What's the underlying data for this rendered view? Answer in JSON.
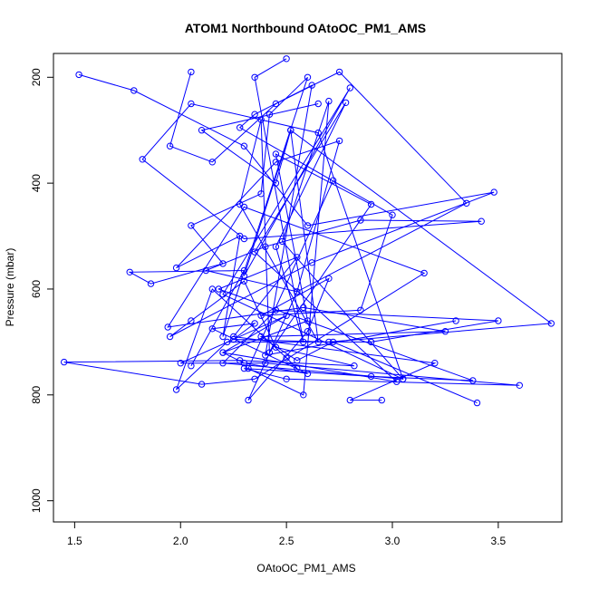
{
  "chart_data": {
    "type": "line",
    "title": "ATOM1 Northbound OAtoOC_PM1_AMS",
    "xlabel": "OAtoOC_PM1_AMS",
    "ylabel": "Pressure (mbar)",
    "xlim": [
      1.4,
      3.8
    ],
    "ylim": [
      1040,
      155
    ],
    "y_axis_inverted": true,
    "x_ticks": [
      1.5,
      2.0,
      2.5,
      3.0,
      3.5
    ],
    "x_tick_labels": [
      "1.5",
      "2.0",
      "2.5",
      "3.0",
      "3.5"
    ],
    "y_ticks": [
      200,
      400,
      600,
      800,
      1000
    ],
    "y_tick_labels": [
      "200",
      "400",
      "600",
      "800",
      "1000"
    ],
    "grid": false,
    "legend": "none",
    "marker": "open-circle",
    "series_color": "#0000ff",
    "series": [
      {
        "x": [
          1.52,
          1.78,
          2.3,
          2.6,
          3.48,
          2.62,
          1.95,
          2.05,
          2.3,
          2.45,
          2.82,
          2.28,
          1.45,
          2.1,
          2.35,
          3.15,
          2.3,
          1.94,
          2.58,
          3.25,
          2.38,
          2.55,
          2.72,
          3.4
        ],
        "y": [
          195,
          225,
          330,
          480,
          417,
          550,
          690,
          660,
          585,
          710,
          745,
          735,
          738,
          780,
          770,
          570,
          445,
          672,
          635,
          680,
          690,
          735,
          700,
          815
        ]
      },
      {
        "x": [
          2.05,
          1.95,
          2.15,
          2.45,
          2.75,
          3.35,
          2.55,
          2.12,
          2.4,
          2.85,
          3.42,
          2.3,
          1.82,
          2.05,
          2.65,
          3.05,
          2.2,
          2.45,
          3.5,
          2.9,
          2.22,
          1.98,
          2.15,
          2.5,
          2.55
        ],
        "y": [
          190,
          330,
          360,
          250,
          190,
          438,
          605,
          565,
          520,
          470,
          472,
          505,
          355,
          250,
          305,
          770,
          740,
          640,
          660,
          700,
          700,
          790,
          600,
          730,
          750
        ]
      },
      {
        "x": [
          2.65,
          2.1,
          2.45,
          2.52,
          3.75,
          2.7,
          2.25,
          2.35,
          2.15,
          2.6,
          2.3,
          2.2,
          2.5,
          2.0,
          2.4,
          3.6,
          2.5,
          2.3,
          2.9,
          3.38,
          2.18,
          2.55,
          2.25,
          3.2,
          2.8,
          2.95
        ],
        "y": [
          250,
          300,
          400,
          300,
          665,
          700,
          695,
          665,
          675,
          760,
          740,
          720,
          650,
          740,
          740,
          782,
          770,
          750,
          765,
          773,
          600,
          540,
          690,
          740,
          810,
          810
        ]
      },
      {
        "x": [
          2.05,
          2.3,
          1.76,
          1.86,
          2.2,
          2.05,
          2.38,
          2.42,
          2.6,
          2.2,
          2.28,
          1.98,
          2.45,
          2.75,
          2.55,
          2.32,
          2.6,
          2.7,
          2.38,
          2.85,
          3.0,
          2.28,
          2.35,
          2.62,
          2.4,
          3.3
        ],
        "y": [
          745,
          565,
          568,
          590,
          552,
          480,
          420,
          270,
          200,
          690,
          500,
          560,
          360,
          320,
          605,
          810,
          680,
          580,
          650,
          640,
          460,
          295,
          270,
          215,
          725,
          660
        ]
      },
      {
        "x": [
          2.5,
          2.35,
          2.58,
          2.45,
          2.78,
          2.35,
          3.02,
          2.2,
          2.6,
          2.45,
          2.9,
          2.42,
          2.38,
          2.28,
          2.65,
          2.52,
          2.3,
          2.8,
          2.2,
          3.05,
          2.48,
          2.7,
          2.58,
          2.32,
          2.72
        ],
        "y": [
          165,
          200,
          700,
          520,
          248,
          530,
          775,
          720,
          660,
          345,
          440,
          720,
          280,
          440,
          700,
          300,
          575,
          220,
          610,
          770,
          510,
          245,
          800,
          750,
          395
        ]
      }
    ]
  }
}
